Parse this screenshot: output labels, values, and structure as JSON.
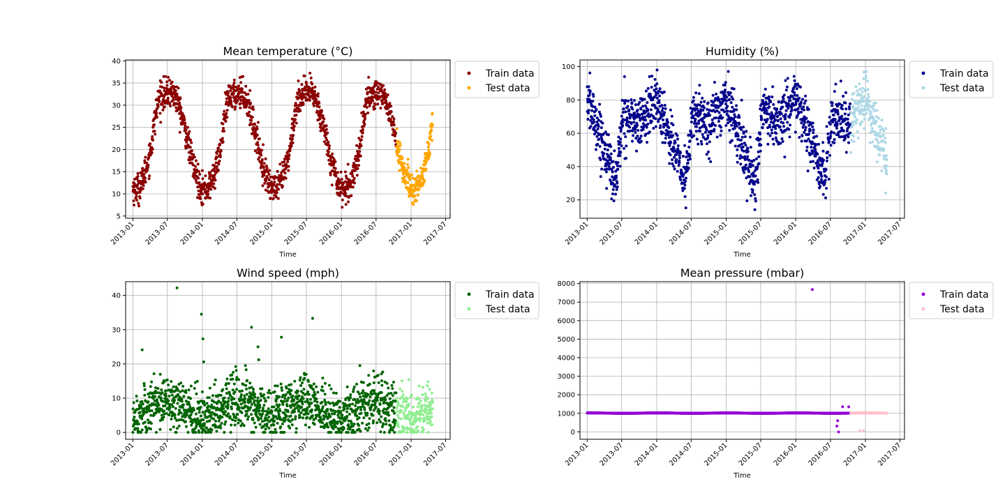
{
  "chart_data": [
    {
      "type": "scatter",
      "title": "Mean temperature (°C)",
      "xlabel": "Time",
      "ylabel": "",
      "xlim": [
        "2012-11-24",
        "2017-07-25"
      ],
      "ylim": [
        4.5,
        40.2
      ],
      "yticks": [
        5,
        10,
        15,
        20,
        25,
        30,
        35,
        40
      ],
      "xticks": [
        "2013-01",
        "2013-07",
        "2014-01",
        "2014-07",
        "2015-01",
        "2015-07",
        "2016-01",
        "2016-07",
        "2017-01",
        "2017-07"
      ],
      "grid": true,
      "legend": "outside-top-right",
      "model": "temperature",
      "series": [
        {
          "name": "Train data",
          "color": "#8b0000",
          "start": "2013-01-01",
          "end": "2016-10-15"
        },
        {
          "name": "Test data",
          "color": "#ffa500",
          "start": "2016-10-16",
          "end": "2017-04-24"
        }
      ]
    },
    {
      "type": "scatter",
      "title": "Humidity (%)",
      "xlabel": "Time",
      "ylabel": "",
      "xlim": [
        "2012-11-24",
        "2017-07-25"
      ],
      "ylim": [
        9,
        104
      ],
      "yticks": [
        20,
        40,
        60,
        80,
        100
      ],
      "xticks": [
        "2013-01",
        "2013-07",
        "2014-01",
        "2014-07",
        "2015-01",
        "2015-07",
        "2016-01",
        "2016-07",
        "2017-01",
        "2017-07"
      ],
      "grid": true,
      "legend": "outside-top-right",
      "model": "humidity",
      "series": [
        {
          "name": "Train data",
          "color": "#00008b",
          "start": "2013-01-01",
          "end": "2016-10-15"
        },
        {
          "name": "Test data",
          "color": "#add8e6",
          "start": "2016-10-16",
          "end": "2017-04-24"
        }
      ]
    },
    {
      "type": "scatter",
      "title": "Wind speed (mph)",
      "xlabel": "Time",
      "ylabel": "",
      "xlim": [
        "2012-11-24",
        "2017-07-25"
      ],
      "ylim": [
        -2,
        44
      ],
      "yticks": [
        0,
        10,
        20,
        30,
        40
      ],
      "xticks": [
        "2013-01",
        "2013-07",
        "2014-01",
        "2014-07",
        "2015-01",
        "2015-07",
        "2016-01",
        "2016-07",
        "2017-01",
        "2017-07"
      ],
      "grid": true,
      "legend": "outside-top-right",
      "model": "wind",
      "series": [
        {
          "name": "Train data",
          "color": "#006400",
          "start": "2013-01-01",
          "end": "2016-10-15"
        },
        {
          "name": "Test data",
          "color": "#90ee90",
          "start": "2016-10-16",
          "end": "2017-04-24"
        }
      ],
      "outliers": [
        {
          "x": "2013-08-21",
          "y": 42.2
        },
        {
          "x": "2013-12-27",
          "y": 34.5
        },
        {
          "x": "2014-01-04",
          "y": 27.3
        },
        {
          "x": "2014-01-08",
          "y": 20.6
        },
        {
          "x": "2014-09-16",
          "y": 30.7
        },
        {
          "x": "2014-10-20",
          "y": 25.0
        },
        {
          "x": "2014-10-24",
          "y": 21.2
        },
        {
          "x": "2015-02-20",
          "y": 27.8
        },
        {
          "x": "2015-08-03",
          "y": 33.3
        },
        {
          "x": "2013-02-19",
          "y": 24.1
        }
      ]
    },
    {
      "type": "scatter",
      "title": "Mean pressure (mbar)",
      "xlabel": "Time",
      "ylabel": "",
      "xlim": [
        "2012-11-24",
        "2017-07-25"
      ],
      "ylim": [
        -400,
        8100
      ],
      "yticks": [
        0,
        1000,
        2000,
        3000,
        4000,
        5000,
        6000,
        7000,
        8000
      ],
      "xticks": [
        "2013-01",
        "2013-07",
        "2014-01",
        "2014-07",
        "2015-01",
        "2015-07",
        "2016-01",
        "2016-07",
        "2017-01",
        "2017-07"
      ],
      "grid": true,
      "legend": "outside-top-right",
      "model": "pressure",
      "series": [
        {
          "name": "Train data",
          "color": "#9400d3",
          "start": "2013-01-01",
          "end": "2016-10-15"
        },
        {
          "name": "Test data",
          "color": "#ffc0cb",
          "start": "2016-10-16",
          "end": "2017-04-24"
        }
      ],
      "outliers": [
        {
          "x": "2016-03-28",
          "y": 7679
        },
        {
          "x": "2016-09-03",
          "y": 1352
        },
        {
          "x": "2016-10-05",
          "y": 1350
        },
        {
          "x": "2016-08-08",
          "y": 600
        },
        {
          "x": "2016-08-04",
          "y": 310
        },
        {
          "x": "2016-08-13",
          "y": -3
        },
        {
          "x": "2016-12-02",
          "y": 59
        },
        {
          "x": "2016-12-21",
          "y": 64
        }
      ]
    }
  ]
}
